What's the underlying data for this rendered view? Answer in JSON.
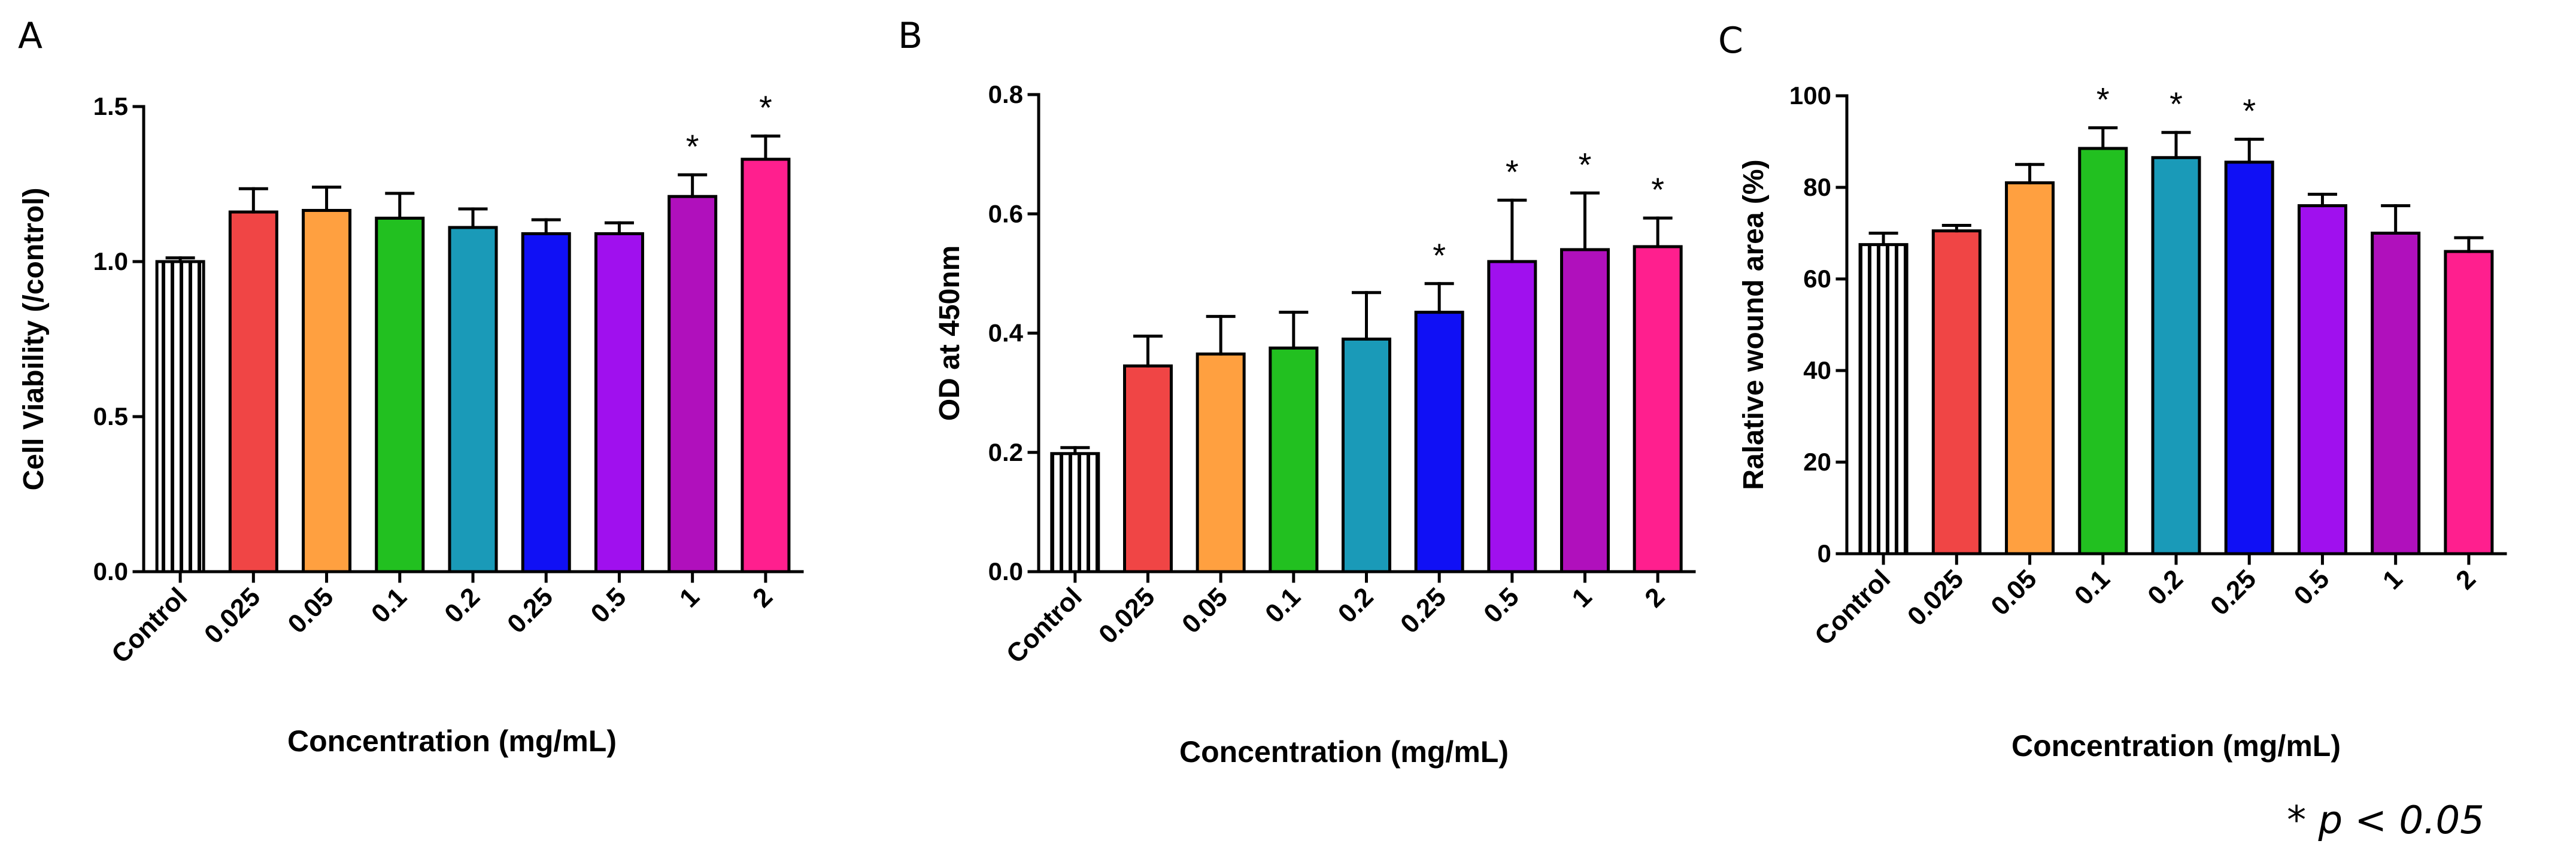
{
  "footnote": "* p < 0.05",
  "chart_data": [
    {
      "panel": "A",
      "type": "bar",
      "title": "",
      "xlabel": "Concentration (mg/mL)",
      "ylabel": "Cell Viability (/control)",
      "ylim": [
        0,
        1.5
      ],
      "yticks": [
        0.0,
        0.5,
        1.0,
        1.5
      ],
      "ytick_labels": [
        "0.0",
        "0.5",
        "1.0",
        "1.5"
      ],
      "grid": false,
      "categories": [
        "Control",
        "0.025",
        "0.05",
        "0.1",
        "0.2",
        "0.25",
        "0.5",
        "1",
        "2"
      ],
      "values": [
        1.0,
        1.16,
        1.165,
        1.14,
        1.11,
        1.09,
        1.09,
        1.21,
        1.33
      ],
      "errors": [
        0.012,
        0.075,
        0.075,
        0.08,
        0.06,
        0.045,
        0.035,
        0.07,
        0.075
      ],
      "significance": [
        "",
        "",
        "",
        "",
        "",
        "",
        "",
        "*",
        "*"
      ],
      "colors": [
        "#ffffff",
        "#f04545",
        "#ffa040",
        "#22c020",
        "#1a9ab8",
        "#1010f5",
        "#a010ee",
        "#b010bc",
        "#ff1f8e"
      ],
      "control_hatched": true
    },
    {
      "panel": "B",
      "type": "bar",
      "title": "",
      "xlabel": "Concentration (mg/mL)",
      "ylabel": "OD at 450nm",
      "ylim": [
        0,
        0.8
      ],
      "yticks": [
        0.0,
        0.2,
        0.4,
        0.6,
        0.8
      ],
      "ytick_labels": [
        "0.0",
        "0.2",
        "0.4",
        "0.6",
        "0.8"
      ],
      "grid": false,
      "categories": [
        "Control",
        "0.025",
        "0.05",
        "0.1",
        "0.2",
        "0.25",
        "0.5",
        "1",
        "2"
      ],
      "values": [
        0.198,
        0.345,
        0.365,
        0.375,
        0.39,
        0.435,
        0.52,
        0.54,
        0.545
      ],
      "errors": [
        0.01,
        0.05,
        0.063,
        0.06,
        0.078,
        0.048,
        0.103,
        0.095,
        0.048
      ],
      "significance": [
        "",
        "",
        "",
        "",
        "",
        "*",
        "*",
        "*",
        "*"
      ],
      "colors": [
        "#ffffff",
        "#f04545",
        "#ffa040",
        "#22c020",
        "#1a9ab8",
        "#1010f5",
        "#a010ee",
        "#b010bc",
        "#ff1f8e"
      ],
      "control_hatched": true
    },
    {
      "panel": "C",
      "type": "bar",
      "title": "",
      "xlabel": "Concentration (mg/mL)",
      "ylabel": "Ralative wound area (%)",
      "ylim": [
        0,
        100
      ],
      "yticks": [
        0,
        20,
        40,
        60,
        80,
        100
      ],
      "ytick_labels": [
        "0",
        "20",
        "40",
        "60",
        "80",
        "100"
      ],
      "grid": false,
      "categories": [
        "Control",
        "0.025",
        "0.05",
        "0.1",
        "0.2",
        "0.25",
        "0.5",
        "1",
        "2"
      ],
      "values": [
        67.5,
        70.5,
        81,
        88.5,
        86.5,
        85.5,
        76,
        70,
        66
      ],
      "errors": [
        2.5,
        1.2,
        4,
        4.5,
        5.5,
        5,
        2.5,
        6,
        3
      ],
      "significance": [
        "",
        "",
        "",
        "*",
        "*",
        "*",
        "",
        "",
        ""
      ],
      "colors": [
        "#ffffff",
        "#f04545",
        "#ffa040",
        "#22c020",
        "#1a9ab8",
        "#1010f5",
        "#a010ee",
        "#b010bc",
        "#ff1f8e"
      ],
      "control_hatched": true
    }
  ]
}
